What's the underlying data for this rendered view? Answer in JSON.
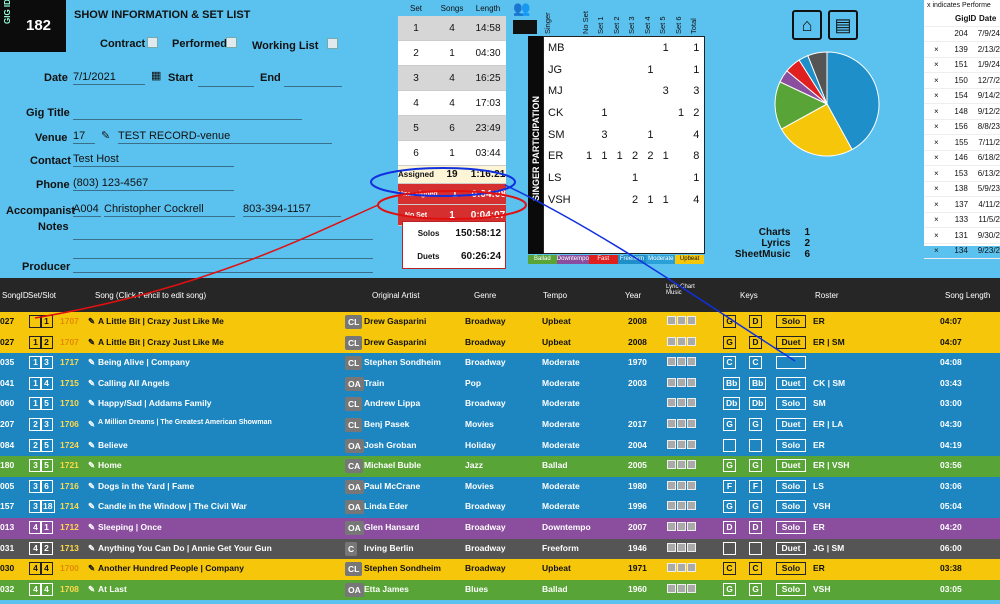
{
  "gig": {
    "badge": "GIG ID",
    "id": "182",
    "title": "SHOW INFORMATION & SET LIST"
  },
  "flags": {
    "contract": "Contract",
    "performed": "Performed",
    "working": "Working List"
  },
  "fields": {
    "date_label": "Date",
    "date": "7/1/2021",
    "start": "Start",
    "end": "End",
    "title_label": "Gig Title",
    "venue_label": "Venue",
    "venue_id": "17",
    "venue": "TEST RECORD-venue",
    "contact_label": "Contact",
    "contact": "Test Host",
    "phone_label": "Phone",
    "phone": "(803) 123-4567",
    "acc_label": "Accompanist",
    "acc_id": "A004",
    "acc_name": "Christopher Cockrell",
    "acc_phone": "803-394-1157",
    "notes_label": "Notes",
    "producer_label": "Producer"
  },
  "sets": {
    "headers": [
      "Set",
      "Songs",
      "Length"
    ],
    "rows": [
      [
        "1",
        "4",
        "14:58"
      ],
      [
        "2",
        "1",
        "04:30"
      ],
      [
        "3",
        "4",
        "16:25"
      ],
      [
        "4",
        "4",
        "17:03"
      ],
      [
        "5",
        "6",
        "23:49"
      ],
      [
        "6",
        "1",
        "03:44"
      ]
    ],
    "assigned": [
      "Assigned",
      "19",
      "1:16:21"
    ],
    "unassigned": [
      "Unassigned",
      "1",
      "0:04:08"
    ],
    "noset": [
      "No Set",
      "1",
      "0:04:07"
    ],
    "solos": [
      "Solos",
      "15",
      "0:58:12"
    ],
    "duets": [
      "Duets",
      "6",
      "0:26:24"
    ]
  },
  "participation": {
    "title": "SINGER PARTICIPATION",
    "headers": [
      "Singer",
      "No Set",
      "Set 1",
      "Set 2",
      "Set 3",
      "Set 4",
      "Set 5",
      "Set 6",
      "Total"
    ],
    "rows": [
      [
        "MB",
        "",
        "",
        "",
        "",
        "",
        "1",
        "",
        "1"
      ],
      [
        "JG",
        "",
        "",
        "",
        "",
        "1",
        "",
        "",
        "1"
      ],
      [
        "MJ",
        "",
        "",
        "",
        "",
        "",
        "3",
        "",
        "3"
      ],
      [
        "CK",
        "",
        "1",
        "",
        "",
        "",
        "",
        "1",
        "2"
      ],
      [
        "SM",
        "",
        "3",
        "",
        "",
        "1",
        "",
        "",
        "4"
      ],
      [
        "ER",
        "1",
        "1",
        "1",
        "2",
        "2",
        "1",
        "",
        "8"
      ],
      [
        "LS",
        "",
        "",
        "",
        "1",
        "",
        "",
        "",
        "1"
      ],
      [
        "VSH",
        "",
        "",
        "",
        "2",
        "1",
        "1",
        "",
        "4"
      ]
    ],
    "legend": [
      "Ballad",
      "Downtempo",
      "Fast",
      "Freeform",
      "Moderate",
      "Upbeat"
    ]
  },
  "pie": {
    "slices": [
      {
        "v": 42,
        "c": "#1e8fc9"
      },
      {
        "v": 25,
        "c": "#f5c60a"
      },
      {
        "v": 15,
        "c": "#58a437"
      },
      {
        "v": 4,
        "c": "#8b4e9e"
      },
      {
        "v": 5,
        "c": "#e0201f"
      },
      {
        "v": 3,
        "c": "#1e8fc9"
      },
      {
        "v": 6,
        "c": "#555555"
      }
    ]
  },
  "counts": [
    [
      "Charts",
      "1"
    ],
    [
      "Lyrics",
      "2"
    ],
    [
      "SheetMusic",
      "6"
    ]
  ],
  "gigs": {
    "note": "x  indicates Performe",
    "headers": [
      "GigID",
      "Date"
    ],
    "rows": [
      [
        "",
        "204",
        "7/9/24"
      ],
      [
        "×",
        "139",
        "2/13/2"
      ],
      [
        "×",
        "151",
        "1/9/24"
      ],
      [
        "×",
        "150",
        "12/7/2"
      ],
      [
        "×",
        "154",
        "9/14/2"
      ],
      [
        "×",
        "148",
        "9/12/2"
      ],
      [
        "×",
        "156",
        "8/8/23"
      ],
      [
        "×",
        "155",
        "7/11/2"
      ],
      [
        "×",
        "146",
        "6/18/2"
      ],
      [
        "×",
        "153",
        "6/13/2"
      ],
      [
        "×",
        "138",
        "5/9/23"
      ],
      [
        "×",
        "137",
        "4/11/2"
      ],
      [
        "×",
        "133",
        "11/5/2"
      ],
      [
        "×",
        "131",
        "9/30/2"
      ],
      [
        "×",
        "134",
        "9/23/2"
      ]
    ]
  },
  "table": {
    "headers": [
      "SongID",
      "Set/Slot",
      "Song (Click Pencil to edit song)",
      "Original Artist",
      "Genre",
      "Tempo",
      "Year",
      "Lyric Chart Music",
      "Keys",
      "Roster",
      "Song Length"
    ],
    "rows": [
      {
        "c": "yel",
        "id": "027",
        "set": "",
        "slot": "1",
        "n": "1707",
        "song": "A Little Bit | Crazy Just Like Me",
        "tag": "CL",
        "artist": "Drew Gasparini",
        "genre": "Broadway",
        "tempo": "Upbeat",
        "year": "2008",
        "k1": "G",
        "k2": "D",
        "type": "Solo",
        "roster": "ER",
        "len": "04:07"
      },
      {
        "c": "yel",
        "id": "027",
        "set": "1",
        "slot": "2",
        "n": "1707",
        "song": "A Little Bit | Crazy Just Like Me",
        "tag": "CL",
        "artist": "Drew Gasparini",
        "genre": "Broadway",
        "tempo": "Upbeat",
        "year": "2008",
        "k1": "G",
        "k2": "D",
        "type": "Duet",
        "roster": "ER | SM",
        "len": "04:07"
      },
      {
        "c": "blu",
        "id": "035",
        "set": "1",
        "slot": "3",
        "n": "1717",
        "song": "Being Alive | Company",
        "tag": "CL",
        "artist": "Stephen Sondheim",
        "genre": "Broadway",
        "tempo": "Moderate",
        "year": "1970",
        "k1": "C",
        "k2": "C",
        "type": "",
        "roster": "",
        "len": "04:08"
      },
      {
        "c": "blu",
        "id": "041",
        "set": "1",
        "slot": "4",
        "n": "1715",
        "song": "Calling All Angels",
        "tag": "OA",
        "artist": "Train",
        "genre": "Pop",
        "tempo": "Moderate",
        "year": "2003",
        "k1": "Bb",
        "k2": "Bb",
        "type": "Duet",
        "roster": "CK | SM",
        "len": "03:43"
      },
      {
        "c": "blu",
        "id": "060",
        "set": "1",
        "slot": "5",
        "n": "1710",
        "song": "Happy/Sad | Addams Family",
        "tag": "CL",
        "artist": "Andrew Lippa",
        "genre": "Broadway",
        "tempo": "Moderate",
        "year": "",
        "k1": "Db",
        "k2": "Db",
        "type": "Solo",
        "roster": "SM",
        "len": "03:00"
      },
      {
        "c": "blu",
        "id": "207",
        "set": "2",
        "slot": "3",
        "n": "1706",
        "song": "A Million Dreams | The Greatest American Showman",
        "tag": "CL",
        "artist": "Benj Pasek",
        "genre": "Movies",
        "tempo": "Moderate",
        "year": "2017",
        "k1": "G",
        "k2": "G",
        "type": "Duet",
        "roster": "ER | LA",
        "len": "04:30"
      },
      {
        "c": "blu",
        "id": "084",
        "set": "2",
        "slot": "5",
        "n": "1724",
        "song": "Believe",
        "tag": "OA",
        "artist": "Josh Groban",
        "genre": "Holiday",
        "tempo": "Moderate",
        "year": "2004",
        "k1": "",
        "k2": "",
        "type": "Solo",
        "roster": "ER",
        "len": "04:19"
      },
      {
        "c": "grn",
        "id": "180",
        "set": "3",
        "slot": "5",
        "n": "1721",
        "song": "Home",
        "tag": "CA",
        "artist": "Michael Buble",
        "genre": "Jazz",
        "tempo": "Ballad",
        "year": "2005",
        "k1": "G",
        "k2": "G",
        "type": "Duet",
        "roster": "ER | VSH",
        "len": "03:56"
      },
      {
        "c": "blu",
        "id": "005",
        "set": "3",
        "slot": "6",
        "n": "1716",
        "song": "Dogs in the Yard | Fame",
        "tag": "OA",
        "artist": "Paul McCrane",
        "genre": "Movies",
        "tempo": "Moderate",
        "year": "1980",
        "k1": "F",
        "k2": "F",
        "type": "Solo",
        "roster": "LS",
        "len": "03:06"
      },
      {
        "c": "blu",
        "id": "157",
        "set": "3",
        "slot": "18",
        "n": "1714",
        "song": "Candle in the Window | The Civil War",
        "tag": "OA",
        "artist": "Linda Eder",
        "genre": "Broadway",
        "tempo": "Moderate",
        "year": "1996",
        "k1": "G",
        "k2": "G",
        "type": "Solo",
        "roster": "VSH",
        "len": "05:04"
      },
      {
        "c": "pur",
        "id": "013",
        "set": "4",
        "slot": "1",
        "n": "1712",
        "song": "Sleeping | Once",
        "tag": "OA",
        "artist": "Glen Hansard",
        "genre": "Broadway",
        "tempo": "Downtempo",
        "year": "2007",
        "k1": "D",
        "k2": "D",
        "type": "Solo",
        "roster": "ER",
        "len": "04:20"
      },
      {
        "c": "gry",
        "id": "031",
        "set": "4",
        "slot": "2",
        "n": "1713",
        "song": "Anything You Can Do | Annie Get Your Gun",
        "tag": "C",
        "artist": "Irving Berlin",
        "genre": "Broadway",
        "tempo": "Freeform",
        "year": "1946",
        "k1": "",
        "k2": "",
        "type": "Duet",
        "roster": "JG | SM",
        "len": "06:00"
      },
      {
        "c": "yel",
        "id": "030",
        "set": "4",
        "slot": "4",
        "n": "1700",
        "song": "Another Hundred People | Company",
        "tag": "CL",
        "artist": "Stephen Sondheim",
        "genre": "Broadway",
        "tempo": "Upbeat",
        "year": "1971",
        "k1": "C",
        "k2": "C",
        "type": "Solo",
        "roster": "ER",
        "len": "03:38"
      },
      {
        "c": "grn",
        "id": "032",
        "set": "4",
        "slot": "4",
        "n": "1708",
        "song": "At Last",
        "tag": "OA",
        "artist": "Etta James",
        "genre": "Blues",
        "tempo": "Ballad",
        "year": "1960",
        "k1": "G",
        "k2": "G",
        "type": "Solo",
        "roster": "VSH",
        "len": "03:05"
      }
    ]
  }
}
